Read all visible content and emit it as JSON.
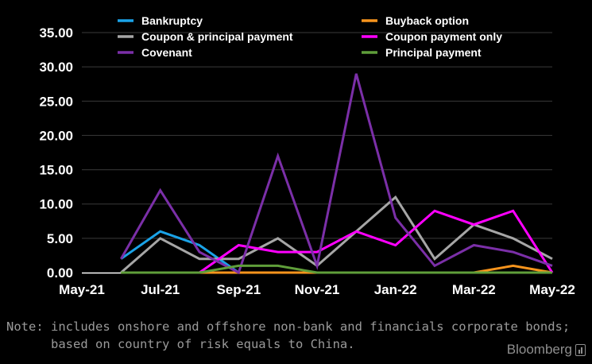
{
  "chart_data": {
    "type": "line",
    "title": "",
    "xlabel": "",
    "ylabel": "",
    "ylim": [
      0,
      35
    ],
    "y_ticks": [
      "0.00",
      "5.00",
      "10.00",
      "15.00",
      "20.00",
      "25.00",
      "30.00",
      "35.00"
    ],
    "x_ticks": [
      "May-21",
      "Jul-21",
      "Sep-21",
      "Nov-21",
      "Jan-22",
      "Mar-22",
      "May-22"
    ],
    "x": [
      "Jun-21",
      "Jul-21",
      "Aug-21",
      "Sep-21",
      "Oct-21",
      "Nov-21",
      "Dec-21",
      "Jan-22",
      "Feb-22",
      "Mar-22",
      "Apr-22",
      "May-22"
    ],
    "grid": true,
    "legend_position": "top",
    "series": [
      {
        "name": "Bankruptcy",
        "color": "#1aa3e8",
        "values": [
          2,
          6,
          4,
          0,
          null,
          null,
          null,
          null,
          null,
          null,
          null,
          null
        ]
      },
      {
        "name": "Buyback option",
        "color": "#f7941d",
        "values": [
          0,
          0,
          0,
          0,
          0,
          0,
          0,
          0,
          0,
          0,
          1,
          0
        ]
      },
      {
        "name": "Coupon & principal payment",
        "color": "#a6a6a6",
        "values": [
          0,
          5,
          2,
          2,
          5,
          1,
          6,
          11,
          2,
          7,
          5,
          2
        ]
      },
      {
        "name": "Coupon payment only",
        "color": "#ff00ff",
        "values": [
          null,
          null,
          0,
          4,
          3,
          3,
          6,
          4,
          9,
          7,
          9,
          0
        ]
      },
      {
        "name": "Covenant",
        "color": "#7b2fa8",
        "values": [
          2,
          12,
          3,
          0,
          17,
          1,
          29,
          8,
          1,
          4,
          3,
          1
        ]
      },
      {
        "name": "Principal payment",
        "color": "#5f9e3a",
        "values": [
          0,
          0,
          0,
          1,
          1,
          0,
          0,
          0,
          0,
          0,
          0,
          0
        ]
      }
    ]
  },
  "footer": {
    "note_line1": "Note: includes onshore and offshore non-bank and financials corporate bonds;",
    "note_line2": "      based on country of risk equals to China.",
    "brand": "Bloomberg"
  }
}
